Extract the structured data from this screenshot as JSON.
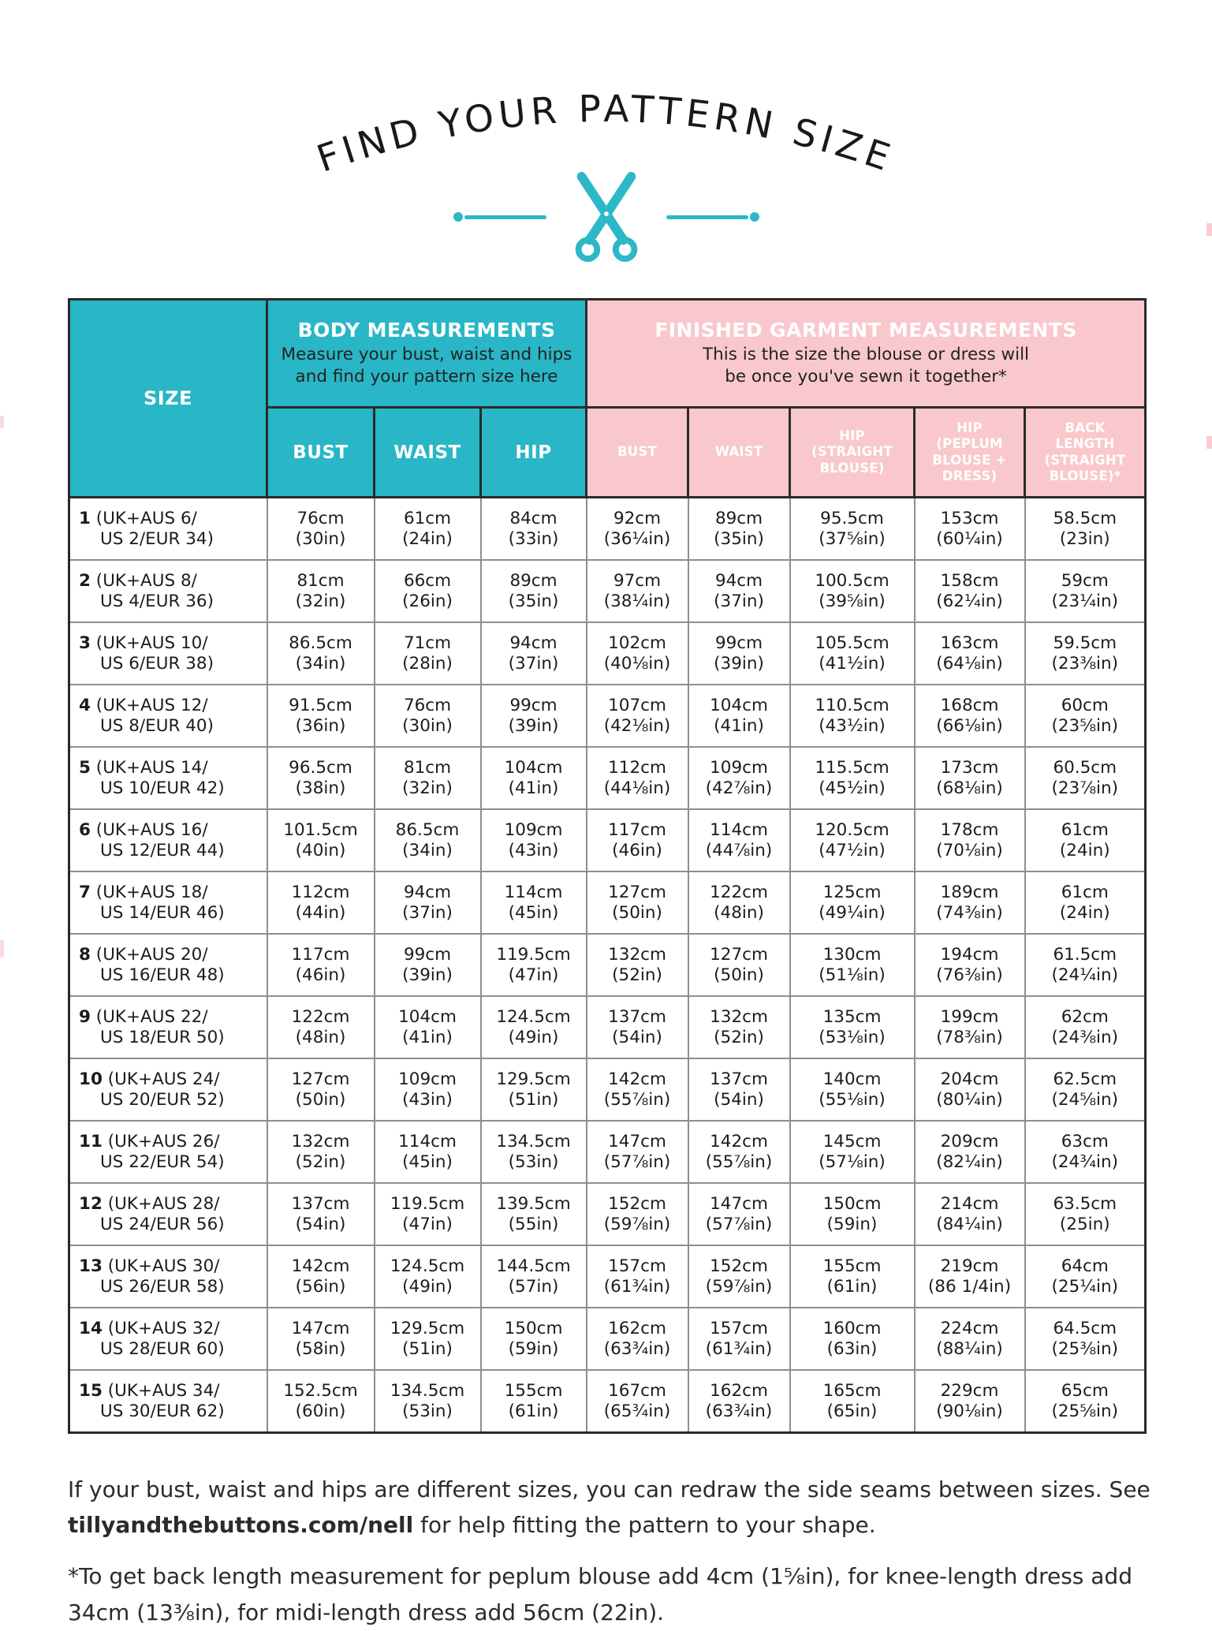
{
  "page": {
    "title": "FIND YOUR PATTERN SIZE"
  },
  "colors": {
    "teal": "#29b6c6",
    "pink": "#f9c8cc",
    "ink": "#1c1c1c",
    "white": "#ffffff"
  },
  "icons": {
    "divider": "scissors-icon",
    "divider_ends": "dot"
  },
  "table": {
    "size_header": "SIZE",
    "body_group": {
      "title": "BODY MEASUREMENTS",
      "subtitle_line1": "Measure your bust, waist and hips",
      "subtitle_line2": "and find your pattern size here"
    },
    "garment_group": {
      "title": "FINISHED GARMENT MEASUREMENTS",
      "subtitle_line1": "This is the size the blouse or dress will",
      "subtitle_line2": "be once you've sewn it together*"
    },
    "body_columns": [
      "BUST",
      "WAIST",
      "HIP"
    ],
    "garment_columns": [
      [
        "BUST"
      ],
      [
        "WAIST"
      ],
      [
        "HIP",
        "(STRAIGHT",
        "BLOUSE)"
      ],
      [
        "HIP",
        "(PEPLUM",
        "BLOUSE +",
        "DRESS)"
      ],
      [
        "BACK",
        "LENGTH",
        "(STRAIGHT",
        "BLOUSE)*"
      ]
    ],
    "rows": [
      {
        "size": "1",
        "label1": "(UK+AUS 6/",
        "label2": "US 2/EUR 34)",
        "values": [
          [
            "76cm",
            "(30in)"
          ],
          [
            "61cm",
            "(24in)"
          ],
          [
            "84cm",
            "(33in)"
          ],
          [
            "92cm",
            "(36¼in)"
          ],
          [
            "89cm",
            "(35in)"
          ],
          [
            "95.5cm",
            "(37⅝in)"
          ],
          [
            "153cm",
            "(60¼in)"
          ],
          [
            "58.5cm",
            "(23in)"
          ]
        ]
      },
      {
        "size": "2",
        "label1": "(UK+AUS 8/",
        "label2": "US 4/EUR 36)",
        "values": [
          [
            "81cm",
            "(32in)"
          ],
          [
            "66cm",
            "(26in)"
          ],
          [
            "89cm",
            "(35in)"
          ],
          [
            "97cm",
            "(38¼in)"
          ],
          [
            "94cm",
            "(37in)"
          ],
          [
            "100.5cm",
            "(39⅝in)"
          ],
          [
            "158cm",
            "(62¼in)"
          ],
          [
            "59cm",
            "(23¼in)"
          ]
        ]
      },
      {
        "size": "3",
        "label1": "(UK+AUS 10/",
        "label2": "US 6/EUR 38)",
        "values": [
          [
            "86.5cm",
            "(34in)"
          ],
          [
            "71cm",
            "(28in)"
          ],
          [
            "94cm",
            "(37in)"
          ],
          [
            "102cm",
            "(40⅛in)"
          ],
          [
            "99cm",
            "(39in)"
          ],
          [
            "105.5cm",
            "(41½in)"
          ],
          [
            "163cm",
            "(64⅛in)"
          ],
          [
            "59.5cm",
            "(23⅜in)"
          ]
        ]
      },
      {
        "size": "4",
        "label1": "(UK+AUS 12/",
        "label2": "US 8/EUR 40)",
        "values": [
          [
            "91.5cm",
            "(36in)"
          ],
          [
            "76cm",
            "(30in)"
          ],
          [
            "99cm",
            "(39in)"
          ],
          [
            "107cm",
            "(42⅛in)"
          ],
          [
            "104cm",
            "(41in)"
          ],
          [
            "110.5cm",
            "(43½in)"
          ],
          [
            "168cm",
            "(66⅛in)"
          ],
          [
            "60cm",
            "(23⅝in)"
          ]
        ]
      },
      {
        "size": "5",
        "label1": "(UK+AUS 14/",
        "label2": "US 10/EUR 42)",
        "values": [
          [
            "96.5cm",
            "(38in)"
          ],
          [
            "81cm",
            "(32in)"
          ],
          [
            "104cm",
            "(41in)"
          ],
          [
            "112cm",
            "(44⅛in)"
          ],
          [
            "109cm",
            "(42⅞in)"
          ],
          [
            "115.5cm",
            "(45½in)"
          ],
          [
            "173cm",
            "(68⅛in)"
          ],
          [
            "60.5cm",
            "(23⅞in)"
          ]
        ]
      },
      {
        "size": "6",
        "label1": "(UK+AUS 16/",
        "label2": "US 12/EUR 44)",
        "values": [
          [
            "101.5cm",
            "(40in)"
          ],
          [
            "86.5cm",
            "(34in)"
          ],
          [
            "109cm",
            "(43in)"
          ],
          [
            "117cm",
            "(46in)"
          ],
          [
            "114cm",
            "(44⅞in)"
          ],
          [
            "120.5cm",
            "(47½in)"
          ],
          [
            "178cm",
            "(70⅛in)"
          ],
          [
            "61cm",
            "(24in)"
          ]
        ]
      },
      {
        "size": "7",
        "label1": "(UK+AUS 18/",
        "label2": "US 14/EUR 46)",
        "values": [
          [
            "112cm",
            "(44in)"
          ],
          [
            "94cm",
            "(37in)"
          ],
          [
            "114cm",
            "(45in)"
          ],
          [
            "127cm",
            "(50in)"
          ],
          [
            "122cm",
            "(48in)"
          ],
          [
            "125cm",
            "(49¼in)"
          ],
          [
            "189cm",
            "(74⅜in)"
          ],
          [
            "61cm",
            "(24in)"
          ]
        ]
      },
      {
        "size": "8",
        "label1": "(UK+AUS 20/",
        "label2": "US 16/EUR 48)",
        "values": [
          [
            "117cm",
            "(46in)"
          ],
          [
            "99cm",
            "(39in)"
          ],
          [
            "119.5cm",
            "(47in)"
          ],
          [
            "132cm",
            "(52in)"
          ],
          [
            "127cm",
            "(50in)"
          ],
          [
            "130cm",
            "(51⅛in)"
          ],
          [
            "194cm",
            "(76⅜in)"
          ],
          [
            "61.5cm",
            "(24¼in)"
          ]
        ]
      },
      {
        "size": "9",
        "label1": "(UK+AUS 22/",
        "label2": "US 18/EUR 50)",
        "values": [
          [
            "122cm",
            "(48in)"
          ],
          [
            "104cm",
            "(41in)"
          ],
          [
            "124.5cm",
            "(49in)"
          ],
          [
            "137cm",
            "(54in)"
          ],
          [
            "132cm",
            "(52in)"
          ],
          [
            "135cm",
            "(53⅛in)"
          ],
          [
            "199cm",
            "(78⅜in)"
          ],
          [
            "62cm",
            "(24⅜in)"
          ]
        ]
      },
      {
        "size": "10",
        "label1": "(UK+AUS 24/",
        "label2": "US 20/EUR 52)",
        "values": [
          [
            "127cm",
            "(50in)"
          ],
          [
            "109cm",
            "(43in)"
          ],
          [
            "129.5cm",
            "(51in)"
          ],
          [
            "142cm",
            "(55⅞in)"
          ],
          [
            "137cm",
            "(54in)"
          ],
          [
            "140cm",
            "(55⅛in)"
          ],
          [
            "204cm",
            "(80¼in)"
          ],
          [
            "62.5cm",
            "(24⅝in)"
          ]
        ]
      },
      {
        "size": "11",
        "label1": "(UK+AUS 26/",
        "label2": "US 22/EUR 54)",
        "values": [
          [
            "132cm",
            "(52in)"
          ],
          [
            "114cm",
            "(45in)"
          ],
          [
            "134.5cm",
            "(53in)"
          ],
          [
            "147cm",
            "(57⅞in)"
          ],
          [
            "142cm",
            "(55⅞in)"
          ],
          [
            "145cm",
            "(57⅛in)"
          ],
          [
            "209cm",
            "(82¼in)"
          ],
          [
            "63cm",
            "(24¾in)"
          ]
        ]
      },
      {
        "size": "12",
        "label1": "(UK+AUS 28/",
        "label2": "US 24/EUR 56)",
        "values": [
          [
            "137cm",
            "(54in)"
          ],
          [
            "119.5cm",
            "(47in)"
          ],
          [
            "139.5cm",
            "(55in)"
          ],
          [
            "152cm",
            "(59⅞in)"
          ],
          [
            "147cm",
            "(57⅞in)"
          ],
          [
            "150cm",
            "(59in)"
          ],
          [
            "214cm",
            "(84¼in)"
          ],
          [
            "63.5cm",
            "(25in)"
          ]
        ]
      },
      {
        "size": "13",
        "label1": "(UK+AUS 30/",
        "label2": "US 26/EUR 58)",
        "values": [
          [
            "142cm",
            "(56in)"
          ],
          [
            "124.5cm",
            "(49in)"
          ],
          [
            "144.5cm",
            "(57in)"
          ],
          [
            "157cm",
            "(61¾in)"
          ],
          [
            "152cm",
            "(59⅞in)"
          ],
          [
            "155cm",
            "(61in)"
          ],
          [
            "219cm",
            "(86 1/4in)"
          ],
          [
            "64cm",
            "(25¼in)"
          ]
        ]
      },
      {
        "size": "14",
        "label1": "(UK+AUS 32/",
        "label2": "US 28/EUR 60)",
        "values": [
          [
            "147cm",
            "(58in)"
          ],
          [
            "129.5cm",
            "(51in)"
          ],
          [
            "150cm",
            "(59in)"
          ],
          [
            "162cm",
            "(63¾in)"
          ],
          [
            "157cm",
            "(61¾in)"
          ],
          [
            "160cm",
            "(63in)"
          ],
          [
            "224cm",
            "(88¼in)"
          ],
          [
            "64.5cm",
            "(25⅜in)"
          ]
        ]
      },
      {
        "size": "15",
        "label1": "(UK+AUS 34/",
        "label2": "US 30/EUR 62)",
        "values": [
          [
            "152.5cm",
            "(60in)"
          ],
          [
            "134.5cm",
            "(53in)"
          ],
          [
            "155cm",
            "(61in)"
          ],
          [
            "167cm",
            "(65¾in)"
          ],
          [
            "162cm",
            "(63¾in)"
          ],
          [
            "165cm",
            "(65in)"
          ],
          [
            "229cm",
            "(90⅛in)"
          ],
          [
            "65cm",
            "(25⅝in)"
          ]
        ]
      }
    ]
  },
  "notes": {
    "note1": {
      "pre": "If your bust, waist and hips are different sizes, you can redraw the side seams between sizes. See ",
      "bold": "tillyandthebuttons.com/nell",
      "post": " for help fitting the pattern to your shape."
    },
    "note2": "*To get back length measurement for peplum blouse add 4cm (1⅝in), for knee-length dress add 34cm (13⅜in), for midi-length dress add 56cm (22in)."
  }
}
